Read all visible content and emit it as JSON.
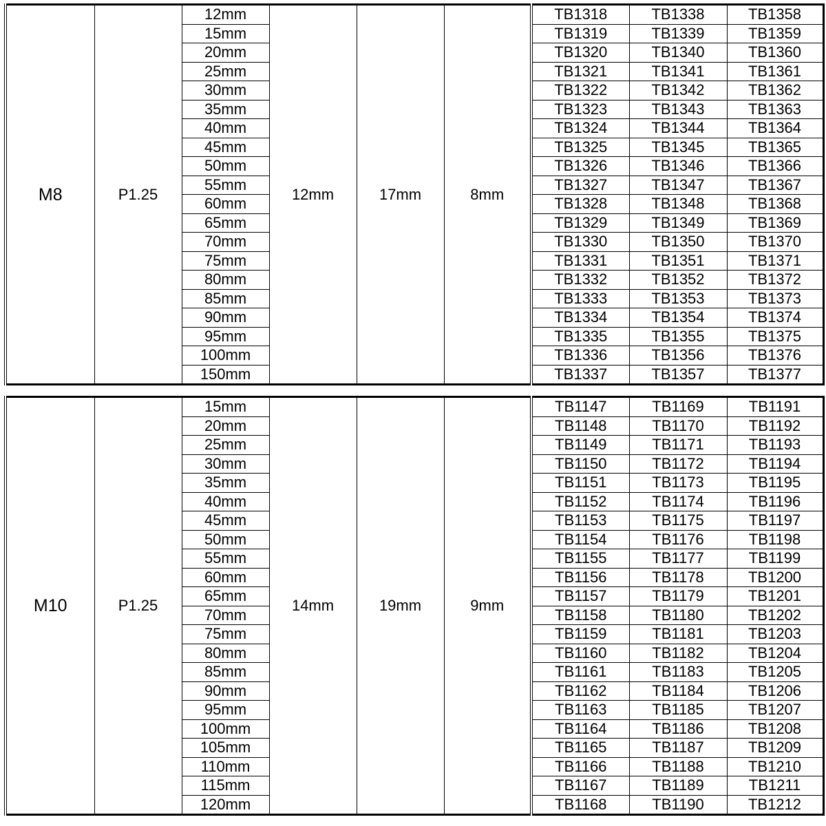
{
  "tables": [
    {
      "size": "M8",
      "pitch": "P1.25",
      "col3": "12mm",
      "col4": "17mm",
      "col5": "8mm",
      "lengths": [
        "12mm",
        "15mm",
        "20mm",
        "25mm",
        "30mm",
        "35mm",
        "40mm",
        "45mm",
        "50mm",
        "55mm",
        "60mm",
        "65mm",
        "70mm",
        "75mm",
        "80mm",
        "85mm",
        "90mm",
        "95mm",
        "100mm",
        "150mm"
      ],
      "codes_a": [
        "TB1318",
        "TB1319",
        "TB1320",
        "TB1321",
        "TB1322",
        "TB1323",
        "TB1324",
        "TB1325",
        "TB1326",
        "TB1327",
        "TB1328",
        "TB1329",
        "TB1330",
        "TB1331",
        "TB1332",
        "TB1333",
        "TB1334",
        "TB1335",
        "TB1336",
        "TB1337"
      ],
      "codes_b": [
        "TB1338",
        "TB1339",
        "TB1340",
        "TB1341",
        "TB1342",
        "TB1343",
        "TB1344",
        "TB1345",
        "TB1346",
        "TB1347",
        "TB1348",
        "TB1349",
        "TB1350",
        "TB1351",
        "TB1352",
        "TB1353",
        "TB1354",
        "TB1355",
        "TB1356",
        "TB1357"
      ],
      "codes_c": [
        "TB1358",
        "TB1359",
        "TB1360",
        "TB1361",
        "TB1362",
        "TB1363",
        "TB1364",
        "TB1365",
        "TB1366",
        "TB1367",
        "TB1368",
        "TB1369",
        "TB1370",
        "TB1371",
        "TB1372",
        "TB1373",
        "TB1374",
        "TB1375",
        "TB1376",
        "TB1377"
      ]
    },
    {
      "size": "M10",
      "pitch": "P1.25",
      "col3": "14mm",
      "col4": "19mm",
      "col5": "9mm",
      "lengths": [
        "15mm",
        "20mm",
        "25mm",
        "30mm",
        "35mm",
        "40mm",
        "45mm",
        "50mm",
        "55mm",
        "60mm",
        "65mm",
        "70mm",
        "75mm",
        "80mm",
        "85mm",
        "90mm",
        "95mm",
        "100mm",
        "105mm",
        "110mm",
        "115mm",
        "120mm"
      ],
      "codes_a": [
        "TB1147",
        "TB1148",
        "TB1149",
        "TB1150",
        "TB1151",
        "TB1152",
        "TB1153",
        "TB1154",
        "TB1155",
        "TB1156",
        "TB1157",
        "TB1158",
        "TB1159",
        "TB1160",
        "TB1161",
        "TB1162",
        "TB1163",
        "TB1164",
        "TB1165",
        "TB1166",
        "TB1167",
        "TB1168"
      ],
      "codes_b": [
        "TB1169",
        "TB1170",
        "TB1171",
        "TB1172",
        "TB1173",
        "TB1174",
        "TB1175",
        "TB1176",
        "TB1177",
        "TB1178",
        "TB1179",
        "TB1180",
        "TB1181",
        "TB1182",
        "TB1183",
        "TB1184",
        "TB1185",
        "TB1186",
        "TB1187",
        "TB1188",
        "TB1189",
        "TB1190"
      ],
      "codes_c": [
        "TB1191",
        "TB1192",
        "TB1193",
        "TB1194",
        "TB1195",
        "TB1196",
        "TB1197",
        "TB1198",
        "TB1199",
        "TB1200",
        "TB1201",
        "TB1202",
        "TB1203",
        "TB1204",
        "TB1205",
        "TB1206",
        "TB1207",
        "TB1208",
        "TB1209",
        "TB1210",
        "TB1211",
        "TB1212"
      ]
    }
  ]
}
